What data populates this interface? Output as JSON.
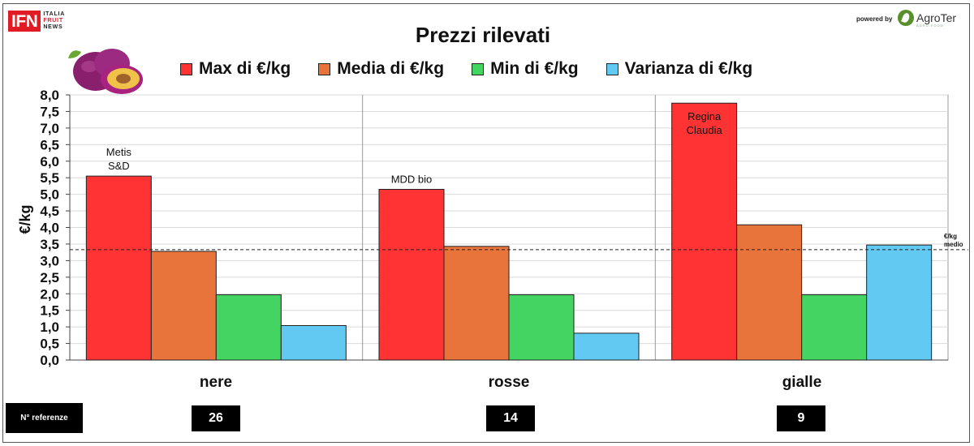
{
  "header": {
    "logo_text": "IFN",
    "logo_sub": [
      "ITALIA",
      "FRUIT",
      "NEWS"
    ],
    "powered_by": "powered by",
    "brand": "AgroTer",
    "brand_sub": "AGRO-FOOD"
  },
  "chart_data": {
    "type": "bar",
    "title": "Prezzi rilevati",
    "ylabel": "€/kg",
    "xlabel": "",
    "ylim": [
      0,
      8
    ],
    "ytick_step": 0.5,
    "yticks": [
      "0,0",
      "0,5",
      "1,0",
      "1,5",
      "2,0",
      "2,5",
      "3,0",
      "3,5",
      "4,0",
      "4,5",
      "5,0",
      "5,5",
      "6,0",
      "6,5",
      "7,0",
      "7,5",
      "8,0"
    ],
    "categories": [
      "nere",
      "rosse",
      "gialle"
    ],
    "series": [
      {
        "name": "Max di €/kg",
        "color": "#ff3333",
        "values": [
          5.55,
          5.15,
          7.75
        ]
      },
      {
        "name": "Media di €/kg",
        "color": "#e8743b",
        "values": [
          3.28,
          3.43,
          4.08
        ]
      },
      {
        "name": "Min di €/kg",
        "color": "#44d462",
        "values": [
          1.97,
          1.97,
          1.97
        ]
      },
      {
        "name": "Varianza di €/kg",
        "color": "#62c9f2",
        "values": [
          1.04,
          0.81,
          3.47
        ]
      }
    ],
    "annotations": [
      {
        "category": "nere",
        "series": "Max di €/kg",
        "lines": [
          "Metis",
          "S&D"
        ]
      },
      {
        "category": "rosse",
        "series": "Max di €/kg",
        "lines": [
          "MDD bio"
        ]
      },
      {
        "category": "gialle",
        "series": "Max di €/kg",
        "lines": [
          "Regina",
          "Claudia"
        ]
      }
    ],
    "reference_line": {
      "value": 3.33,
      "label": [
        "€/kg",
        "medio"
      ]
    },
    "grid": true,
    "legend_position": "top"
  },
  "references": {
    "label": "N° referenze",
    "counts": [
      "26",
      "14",
      "9"
    ]
  }
}
